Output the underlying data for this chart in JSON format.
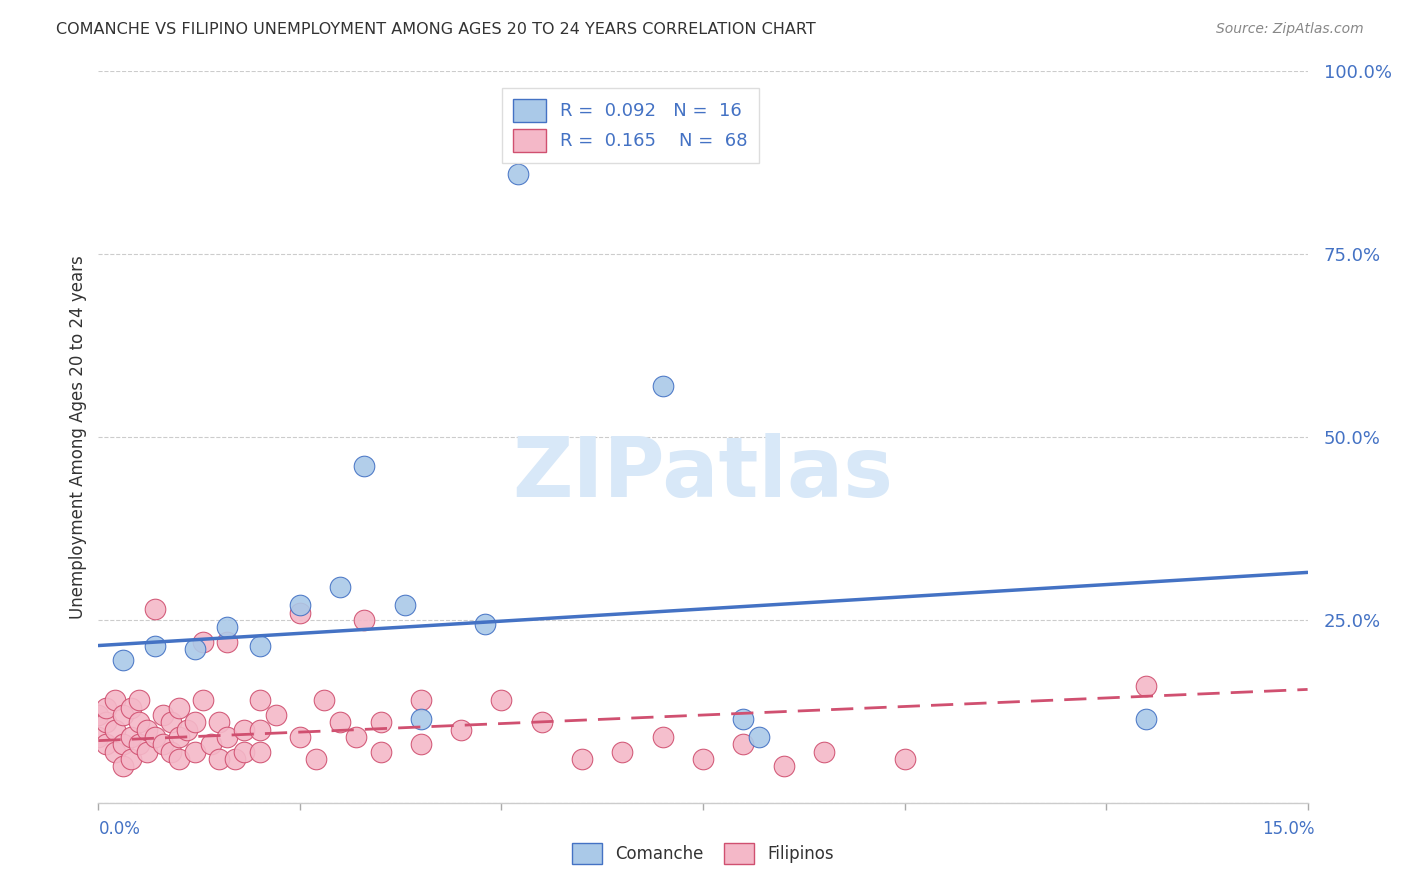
{
  "title": "COMANCHE VS FILIPINO UNEMPLOYMENT AMONG AGES 20 TO 24 YEARS CORRELATION CHART",
  "source": "Source: ZipAtlas.com",
  "ylabel": "Unemployment Among Ages 20 to 24 years",
  "xlim": [
    0.0,
    0.15
  ],
  "ylim": [
    0.0,
    1.0
  ],
  "yticks": [
    0.0,
    0.25,
    0.5,
    0.75,
    1.0
  ],
  "ytick_labels": [
    "",
    "25.0%",
    "50.0%",
    "75.0%",
    "100.0%"
  ],
  "xticks": [
    0.0,
    0.025,
    0.05,
    0.075,
    0.1,
    0.125,
    0.15
  ],
  "comanche_R": "0.092",
  "comanche_N": "16",
  "filipino_R": "0.165",
  "filipino_N": "68",
  "comanche_color": "#aac9e8",
  "comanche_line_color": "#4472c4",
  "filipino_color": "#f4b8c8",
  "filipino_line_color": "#d05070",
  "comanche_scatter_x": [
    0.003,
    0.007,
    0.012,
    0.016,
    0.02,
    0.025,
    0.03,
    0.033,
    0.038,
    0.04,
    0.048,
    0.052,
    0.07,
    0.08,
    0.082,
    0.13
  ],
  "comanche_scatter_y": [
    0.195,
    0.215,
    0.21,
    0.24,
    0.215,
    0.27,
    0.295,
    0.46,
    0.27,
    0.115,
    0.245,
    0.86,
    0.57,
    0.115,
    0.09,
    0.115
  ],
  "filipino_scatter_x": [
    0.0,
    0.0,
    0.001,
    0.001,
    0.001,
    0.002,
    0.002,
    0.002,
    0.003,
    0.003,
    0.003,
    0.004,
    0.004,
    0.004,
    0.005,
    0.005,
    0.005,
    0.006,
    0.006,
    0.007,
    0.007,
    0.008,
    0.008,
    0.009,
    0.009,
    0.01,
    0.01,
    0.01,
    0.011,
    0.012,
    0.012,
    0.013,
    0.013,
    0.014,
    0.015,
    0.015,
    0.016,
    0.016,
    0.017,
    0.018,
    0.018,
    0.02,
    0.02,
    0.02,
    0.022,
    0.025,
    0.025,
    0.027,
    0.028,
    0.03,
    0.032,
    0.033,
    0.035,
    0.035,
    0.04,
    0.04,
    0.045,
    0.05,
    0.055,
    0.06,
    0.065,
    0.07,
    0.075,
    0.08,
    0.085,
    0.09,
    0.1,
    0.13
  ],
  "filipino_scatter_y": [
    0.09,
    0.12,
    0.08,
    0.11,
    0.13,
    0.07,
    0.1,
    0.14,
    0.08,
    0.12,
    0.05,
    0.09,
    0.13,
    0.06,
    0.11,
    0.08,
    0.14,
    0.07,
    0.1,
    0.265,
    0.09,
    0.12,
    0.08,
    0.07,
    0.11,
    0.09,
    0.13,
    0.06,
    0.1,
    0.07,
    0.11,
    0.14,
    0.22,
    0.08,
    0.06,
    0.11,
    0.09,
    0.22,
    0.06,
    0.1,
    0.07,
    0.14,
    0.1,
    0.07,
    0.12,
    0.26,
    0.09,
    0.06,
    0.14,
    0.11,
    0.09,
    0.25,
    0.11,
    0.07,
    0.14,
    0.08,
    0.1,
    0.14,
    0.11,
    0.06,
    0.07,
    0.09,
    0.06,
    0.08,
    0.05,
    0.07,
    0.06,
    0.16
  ],
  "comanche_trend_x": [
    0.0,
    0.15
  ],
  "comanche_trend_y": [
    0.215,
    0.315
  ],
  "filipino_trend_x": [
    0.0,
    0.15
  ],
  "filipino_trend_y": [
    0.085,
    0.155
  ],
  "background_color": "#ffffff",
  "grid_color": "#cccccc",
  "title_color": "#333333",
  "axis_label_color": "#4472c4",
  "watermark_color": "#d8e8f8"
}
